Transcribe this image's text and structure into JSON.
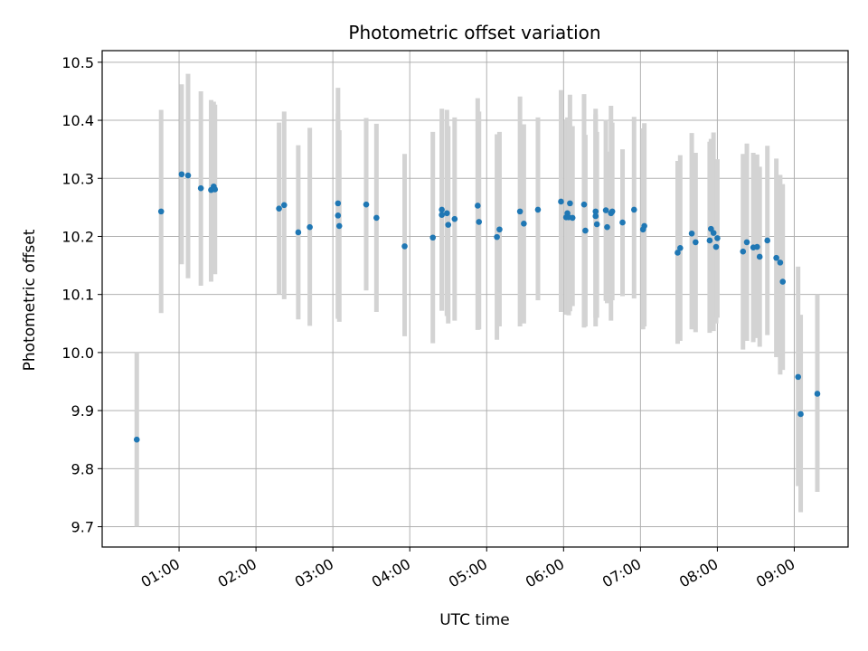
{
  "chart_data": {
    "type": "scatter",
    "title": "Photometric offset variation",
    "xlabel": "UTC time",
    "ylabel": "Photometric offset",
    "x_ticks": [
      "01:00",
      "02:00",
      "03:00",
      "04:00",
      "05:00",
      "06:00",
      "07:00",
      "08:00",
      "09:00"
    ],
    "y_ticks": [
      "9.7",
      "9.8",
      "9.9",
      "10.0",
      "10.1",
      "10.2",
      "10.3",
      "10.4",
      "10.5"
    ],
    "xlim": [
      "00:00",
      "09:42"
    ],
    "ylim": [
      9.665,
      10.52
    ],
    "grid": true,
    "colors": {
      "point": "#1f77b4",
      "errorbar": "#d3d3d3",
      "grid": "#b0b0b0"
    },
    "series": [
      {
        "x": [
          "00:27",
          "00:46",
          "01:02",
          "01:07",
          "01:17",
          "01:25",
          "01:27",
          "01:28",
          "02:18",
          "02:22",
          "02:33",
          "02:42",
          "03:04",
          "03:04",
          "03:05",
          "03:26",
          "03:34",
          "03:56",
          "04:18",
          "04:25",
          "04:25",
          "04:29",
          "04:30",
          "04:35",
          "04:53",
          "04:54",
          "05:08",
          "05:10",
          "05:26",
          "05:29",
          "05:40",
          "05:58",
          "06:02",
          "06:03",
          "06:04",
          "06:05",
          "06:07",
          "06:16",
          "06:17",
          "06:25",
          "06:25",
          "06:26",
          "06:33",
          "06:34",
          "06:37",
          "06:38",
          "06:46",
          "06:55",
          "07:02",
          "07:03",
          "07:29",
          "07:31",
          "07:40",
          "07:43",
          "07:54",
          "07:55",
          "07:57",
          "07:59",
          "08:00",
          "08:20",
          "08:23",
          "08:28",
          "08:31",
          "08:33",
          "08:39",
          "08:46",
          "08:49",
          "08:51",
          "09:03",
          "09:05",
          "09:18"
        ],
        "y": [
          9.85,
          10.243,
          10.307,
          10.305,
          10.283,
          10.28,
          10.286,
          10.281,
          10.248,
          10.254,
          10.207,
          10.216,
          10.257,
          10.236,
          10.218,
          10.255,
          10.232,
          10.183,
          10.198,
          10.246,
          10.237,
          10.24,
          10.22,
          10.23,
          10.253,
          10.225,
          10.199,
          10.212,
          10.243,
          10.222,
          10.246,
          10.26,
          10.233,
          10.24,
          10.233,
          10.257,
          10.232,
          10.255,
          10.21,
          10.243,
          10.235,
          10.221,
          10.245,
          10.216,
          10.24,
          10.243,
          10.224,
          10.246,
          10.212,
          10.218,
          10.172,
          10.18,
          10.205,
          10.19,
          10.193,
          10.213,
          10.206,
          10.182,
          10.197,
          10.174,
          10.19,
          10.181,
          10.182,
          10.165,
          10.193,
          10.163,
          10.155,
          10.122,
          9.958,
          9.894,
          9.929
        ],
        "err_low": [
          9.7,
          10.068,
          10.152,
          10.128,
          10.115,
          10.122,
          10.14,
          10.135,
          10.1,
          10.092,
          10.057,
          10.046,
          10.058,
          10.06,
          10.053,
          10.107,
          10.07,
          10.028,
          10.016,
          10.072,
          10.072,
          10.063,
          10.05,
          10.055,
          10.039,
          10.04,
          10.022,
          10.045,
          10.045,
          10.05,
          10.09,
          10.07,
          10.065,
          10.075,
          10.064,
          10.071,
          10.08,
          10.043,
          10.045,
          10.045,
          10.06,
          10.06,
          10.089,
          10.085,
          10.055,
          10.09,
          10.097,
          10.093,
          10.04,
          10.045,
          10.015,
          10.02,
          10.04,
          10.035,
          10.034,
          10.055,
          10.037,
          10.05,
          10.06,
          10.005,
          10.02,
          10.018,
          10.025,
          10.01,
          10.03,
          9.992,
          9.962,
          9.97,
          9.77,
          9.725,
          9.76
        ],
        "err_high": [
          10.0,
          10.418,
          10.462,
          10.48,
          10.45,
          10.435,
          10.432,
          10.427,
          10.396,
          10.415,
          10.357,
          10.387,
          10.456,
          10.412,
          10.383,
          10.404,
          10.394,
          10.342,
          10.38,
          10.42,
          10.4,
          10.418,
          10.39,
          10.405,
          10.438,
          10.415,
          10.376,
          10.38,
          10.441,
          10.393,
          10.405,
          10.452,
          10.4,
          10.405,
          10.4,
          10.444,
          10.39,
          10.445,
          10.375,
          10.42,
          10.41,
          10.38,
          10.401,
          10.346,
          10.425,
          10.396,
          10.35,
          10.406,
          10.386,
          10.395,
          10.33,
          10.34,
          10.378,
          10.344,
          10.363,
          10.368,
          10.379,
          10.315,
          10.333,
          10.342,
          10.36,
          10.344,
          10.341,
          10.32,
          10.356,
          10.334,
          10.306,
          10.29,
          10.148,
          10.065,
          10.1
        ]
      }
    ]
  }
}
